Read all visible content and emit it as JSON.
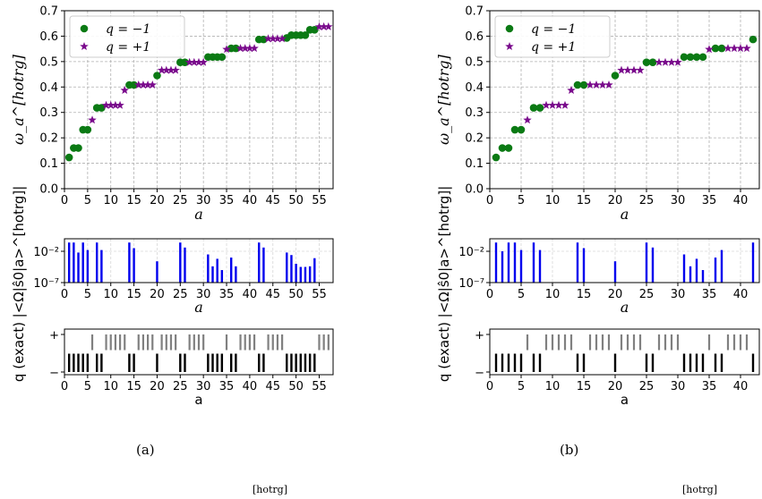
{
  "chart_data": [
    {
      "panel": "a",
      "type": "scatter",
      "xlabel": "a",
      "ylabel": "ω_a^[hotrg]",
      "xlim": [
        0,
        58
      ],
      "ylim": [
        0,
        0.7
      ],
      "xticks": [
        0,
        5,
        10,
        15,
        20,
        25,
        30,
        35,
        40,
        45,
        50,
        55
      ],
      "yticks": [
        0.0,
        0.1,
        0.2,
        0.3,
        0.4,
        0.5,
        0.6,
        0.7
      ],
      "grid": true,
      "legend_position": "top-left",
      "series": [
        {
          "name": "q = −1",
          "marker": "circle",
          "color": "#0b7a14",
          "x": [
            1,
            2,
            3,
            4,
            5,
            7,
            8,
            14,
            15,
            20,
            25,
            26,
            31,
            32,
            33,
            34,
            36,
            37,
            42,
            43,
            48,
            49,
            50,
            51,
            52,
            53,
            54
          ],
          "y": [
            0.123,
            0.16,
            0.16,
            0.232,
            0.232,
            0.318,
            0.318,
            0.408,
            0.408,
            0.445,
            0.497,
            0.497,
            0.518,
            0.518,
            0.518,
            0.518,
            0.552,
            0.552,
            0.587,
            0.587,
            0.593,
            0.604,
            0.604,
            0.604,
            0.604,
            0.625,
            0.625
          ]
        },
        {
          "name": "q = +1",
          "marker": "star",
          "color": "#7a0a8c",
          "x": [
            6,
            9,
            10,
            11,
            12,
            13,
            16,
            17,
            18,
            19,
            21,
            22,
            23,
            24,
            27,
            28,
            29,
            30,
            35,
            38,
            39,
            40,
            41,
            44,
            45,
            46,
            47,
            55,
            56,
            57
          ],
          "y": [
            0.27,
            0.328,
            0.328,
            0.328,
            0.328,
            0.387,
            0.408,
            0.408,
            0.408,
            0.408,
            0.466,
            0.466,
            0.466,
            0.466,
            0.497,
            0.497,
            0.497,
            0.497,
            0.548,
            0.552,
            0.552,
            0.552,
            0.552,
            0.59,
            0.59,
            0.59,
            0.59,
            0.637,
            0.637,
            0.637
          ]
        }
      ]
    },
    {
      "panel": "a",
      "type": "bar",
      "xlabel": "a",
      "ylabel": "|<Ω|ŝ0|a>^[hotrg]|",
      "yscale": "log",
      "ylim": [
        1e-07,
        1
      ],
      "yticks": [
        {
          "value": -2,
          "label": "10⁻²"
        },
        {
          "value": -7,
          "label": "10⁻⁷"
        }
      ],
      "xticks": [
        0,
        5,
        10,
        15,
        20,
        25,
        30,
        35,
        40,
        45,
        50,
        55
      ],
      "xlim": [
        0,
        58
      ],
      "color": "#0000ee",
      "x": [
        1,
        2,
        3,
        4,
        5,
        7,
        8,
        14,
        15,
        20,
        25,
        26,
        31,
        32,
        33,
        34,
        36,
        37,
        42,
        43,
        48,
        49,
        50,
        51,
        52,
        53,
        54
      ],
      "log10_values": [
        -0.6,
        -0.6,
        -2.2,
        -0.6,
        -1.8,
        -0.6,
        -1.8,
        -0.6,
        -1.5,
        -3.6,
        -0.6,
        -1.4,
        -2.5,
        -4.4,
        -3.2,
        -5.0,
        -3.0,
        -4.4,
        -0.6,
        -1.4,
        -2.2,
        -2.6,
        -4.0,
        -4.5,
        -4.5,
        -4.4,
        -3.1
      ]
    },
    {
      "panel": "a",
      "type": "bar",
      "xlabel": "a",
      "ylabel": "q (exact)",
      "yticks": [
        "+",
        "−"
      ],
      "xticks": [
        0,
        5,
        10,
        15,
        20,
        25,
        30,
        35,
        40,
        45,
        50,
        55
      ],
      "xlim": [
        0,
        58
      ],
      "plus_color": "#808080",
      "minus_color": "#000000",
      "minus_x": [
        1,
        2,
        3,
        4,
        5,
        7,
        8,
        14,
        15,
        20,
        25,
        26,
        31,
        32,
        33,
        34,
        36,
        37,
        42,
        43,
        48,
        49,
        50,
        51,
        52,
        53,
        54
      ],
      "plus_x": [
        6,
        9,
        10,
        11,
        12,
        13,
        16,
        17,
        18,
        19,
        21,
        22,
        23,
        24,
        27,
        28,
        29,
        30,
        35,
        38,
        39,
        40,
        41,
        44,
        45,
        46,
        47,
        55,
        56,
        57
      ]
    },
    {
      "panel": "b",
      "type": "scatter",
      "xlabel": "a",
      "ylabel": "ω_a^[hotrg]",
      "xlim": [
        0,
        43
      ],
      "ylim": [
        0,
        0.7
      ],
      "xticks": [
        0,
        5,
        10,
        15,
        20,
        25,
        30,
        35,
        40
      ],
      "yticks": [
        0.0,
        0.1,
        0.2,
        0.3,
        0.4,
        0.5,
        0.6,
        0.7
      ],
      "grid": true,
      "legend_position": "top-left",
      "series": [
        {
          "name": "q = −1",
          "marker": "circle",
          "color": "#0b7a14",
          "x": [
            1,
            2,
            3,
            4,
            5,
            7,
            8,
            14,
            15,
            20,
            25,
            26,
            31,
            32,
            33,
            34,
            36,
            37,
            42
          ],
          "y": [
            0.123,
            0.16,
            0.16,
            0.232,
            0.232,
            0.318,
            0.318,
            0.408,
            0.408,
            0.445,
            0.497,
            0.497,
            0.518,
            0.518,
            0.518,
            0.518,
            0.552,
            0.552,
            0.587
          ]
        },
        {
          "name": "q = +1",
          "marker": "star",
          "color": "#7a0a8c",
          "x": [
            6,
            9,
            10,
            11,
            12,
            13,
            16,
            17,
            18,
            19,
            21,
            22,
            23,
            24,
            27,
            28,
            29,
            30,
            35,
            38,
            39,
            40,
            41
          ],
          "y": [
            0.27,
            0.328,
            0.328,
            0.328,
            0.328,
            0.387,
            0.408,
            0.408,
            0.408,
            0.408,
            0.466,
            0.466,
            0.466,
            0.466,
            0.497,
            0.497,
            0.497,
            0.497,
            0.548,
            0.552,
            0.552,
            0.552,
            0.552
          ]
        }
      ]
    },
    {
      "panel": "b",
      "type": "bar",
      "xlabel": "a",
      "ylabel": "|<Ω|ŝ0|a>^[hotrg]|",
      "yscale": "log",
      "ylim": [
        1e-07,
        1
      ],
      "yticks": [
        {
          "value": -2,
          "label": "10⁻²"
        },
        {
          "value": -7,
          "label": "10⁻⁷"
        }
      ],
      "xticks": [
        0,
        5,
        10,
        15,
        20,
        25,
        30,
        35,
        40
      ],
      "xlim": [
        0,
        43
      ],
      "color": "#0000ee",
      "x": [
        1,
        2,
        3,
        4,
        5,
        7,
        8,
        14,
        15,
        20,
        25,
        26,
        31,
        32,
        33,
        34,
        36,
        37,
        42
      ],
      "log10_values": [
        -0.6,
        -2.0,
        -0.6,
        -0.6,
        -1.8,
        -0.6,
        -1.8,
        -0.6,
        -1.5,
        -3.6,
        -0.6,
        -1.4,
        -2.5,
        -4.4,
        -3.2,
        -5.0,
        -3.0,
        -1.8,
        -0.6
      ]
    },
    {
      "panel": "b",
      "type": "bar",
      "xlabel": "a",
      "ylabel": "q (exact)",
      "yticks": [
        "+",
        "−"
      ],
      "xticks": [
        0,
        5,
        10,
        15,
        20,
        25,
        30,
        35,
        40
      ],
      "xlim": [
        0,
        43
      ],
      "plus_color": "#808080",
      "minus_color": "#000000",
      "minus_x": [
        1,
        2,
        3,
        4,
        5,
        7,
        8,
        14,
        15,
        20,
        25,
        26,
        31,
        32,
        33,
        34,
        36,
        37,
        42
      ],
      "plus_x": [
        6,
        9,
        10,
        11,
        12,
        13,
        16,
        17,
        18,
        19,
        21,
        22,
        23,
        24,
        27,
        28,
        29,
        30,
        35,
        38,
        39,
        40,
        41
      ]
    }
  ],
  "captions": {
    "a": "(a)",
    "b": "(b)"
  },
  "footer_fragments": {
    "left": "[hotrg]",
    "right": "[hotrg]"
  }
}
